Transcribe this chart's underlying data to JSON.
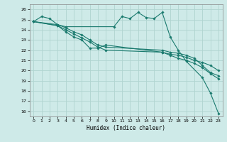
{
  "xlabel": "Humidex (Indice chaleur)",
  "bg_color": "#ceeae8",
  "grid_color": "#b0d4d0",
  "line_color": "#1a7a6e",
  "xlim": [
    -0.5,
    23.5
  ],
  "ylim": [
    15.5,
    26.5
  ],
  "yticks": [
    16,
    17,
    18,
    19,
    20,
    21,
    22,
    23,
    24,
    25,
    26
  ],
  "xticks": [
    0,
    1,
    2,
    3,
    4,
    5,
    6,
    7,
    8,
    9,
    10,
    11,
    12,
    13,
    14,
    15,
    16,
    17,
    18,
    19,
    20,
    21,
    22,
    23
  ],
  "line1_x": [
    0,
    1,
    2,
    3,
    4,
    10,
    11,
    12,
    13,
    14,
    15,
    16,
    17,
    18,
    19,
    21,
    22,
    23
  ],
  "line1_y": [
    24.8,
    25.3,
    25.1,
    24.5,
    24.3,
    24.3,
    25.3,
    25.1,
    25.7,
    25.2,
    25.1,
    25.7,
    23.3,
    22.0,
    20.9,
    19.3,
    17.8,
    15.8
  ],
  "line2_x": [
    0,
    3,
    4,
    5,
    6,
    7,
    8,
    9,
    16,
    17,
    18,
    19,
    20,
    21,
    22,
    23
  ],
  "line2_y": [
    24.8,
    24.4,
    23.8,
    23.3,
    23.0,
    22.2,
    22.2,
    22.5,
    21.8,
    21.6,
    21.5,
    21.3,
    21.0,
    20.8,
    20.5,
    20.0
  ],
  "line3_x": [
    0,
    3,
    4,
    5,
    6,
    7,
    8,
    9,
    16,
    17,
    18,
    19,
    20,
    21,
    22,
    23
  ],
  "line3_y": [
    24.8,
    24.5,
    24.2,
    23.8,
    23.5,
    23.0,
    22.5,
    22.3,
    22.0,
    21.8,
    21.7,
    21.5,
    21.2,
    20.5,
    19.8,
    19.5
  ],
  "line4_x": [
    0,
    3,
    4,
    5,
    6,
    7,
    8,
    9,
    16,
    17,
    18,
    19,
    20,
    21,
    22,
    23
  ],
  "line4_y": [
    24.8,
    24.4,
    24.0,
    23.6,
    23.2,
    22.8,
    22.3,
    22.0,
    21.8,
    21.5,
    21.2,
    21.0,
    20.7,
    20.3,
    19.7,
    19.2
  ]
}
